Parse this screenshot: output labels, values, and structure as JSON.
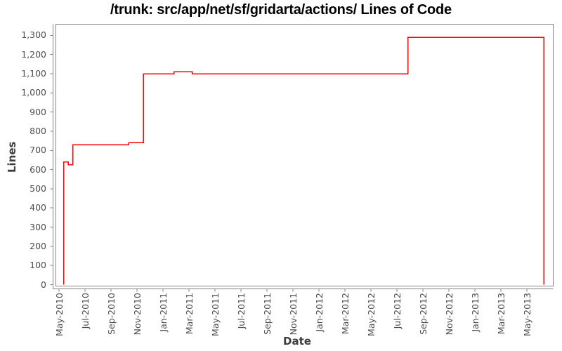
{
  "chart_data": {
    "type": "line",
    "subtype": "step",
    "title": "/trunk: src/app/net/sf/gridarta/actions/ Lines of Code",
    "xlabel": "Date",
    "ylabel": "Lines",
    "legend": "none",
    "grid": false,
    "ylim": [
      0,
      1300
    ],
    "y_tick_step": 100,
    "y_tick_labels": [
      "0",
      "100",
      "200",
      "300",
      "400",
      "500",
      "600",
      "700",
      "800",
      "900",
      "1,000",
      "1,100",
      "1,200",
      "1,300"
    ],
    "x_tick_labels": [
      "May-2010",
      "Jul-2010",
      "Sep-2010",
      "Nov-2010",
      "Jan-2011",
      "Mar-2011",
      "May-2011",
      "Jul-2011",
      "Sep-2011",
      "Nov-2011",
      "Jan-2012",
      "Mar-2012",
      "May-2012",
      "Jul-2012",
      "Sep-2012",
      "Nov-2012",
      "Jan-2013",
      "Mar-2013",
      "May-2013"
    ],
    "series": [
      {
        "name": "Lines of Code",
        "color": "#ff0000",
        "points": [
          {
            "date": "2010-05-12",
            "value": 0
          },
          {
            "date": "2010-05-12",
            "value": 640
          },
          {
            "date": "2010-05-23",
            "value": 625
          },
          {
            "date": "2010-06-03",
            "value": 730
          },
          {
            "date": "2010-10-12",
            "value": 740
          },
          {
            "date": "2010-11-16",
            "value": 1100
          },
          {
            "date": "2011-01-27",
            "value": 1110
          },
          {
            "date": "2011-03-09",
            "value": 1100
          },
          {
            "date": "2012-07-27",
            "value": 1290
          },
          {
            "date": "2013-06-10",
            "value": 0
          }
        ]
      }
    ],
    "colors": {
      "line": "#ff0000",
      "frame": "#848484",
      "axis": "#808080",
      "tick_text": "#4d4d4d",
      "title_text": "#000000",
      "background": "#ffffff"
    }
  }
}
